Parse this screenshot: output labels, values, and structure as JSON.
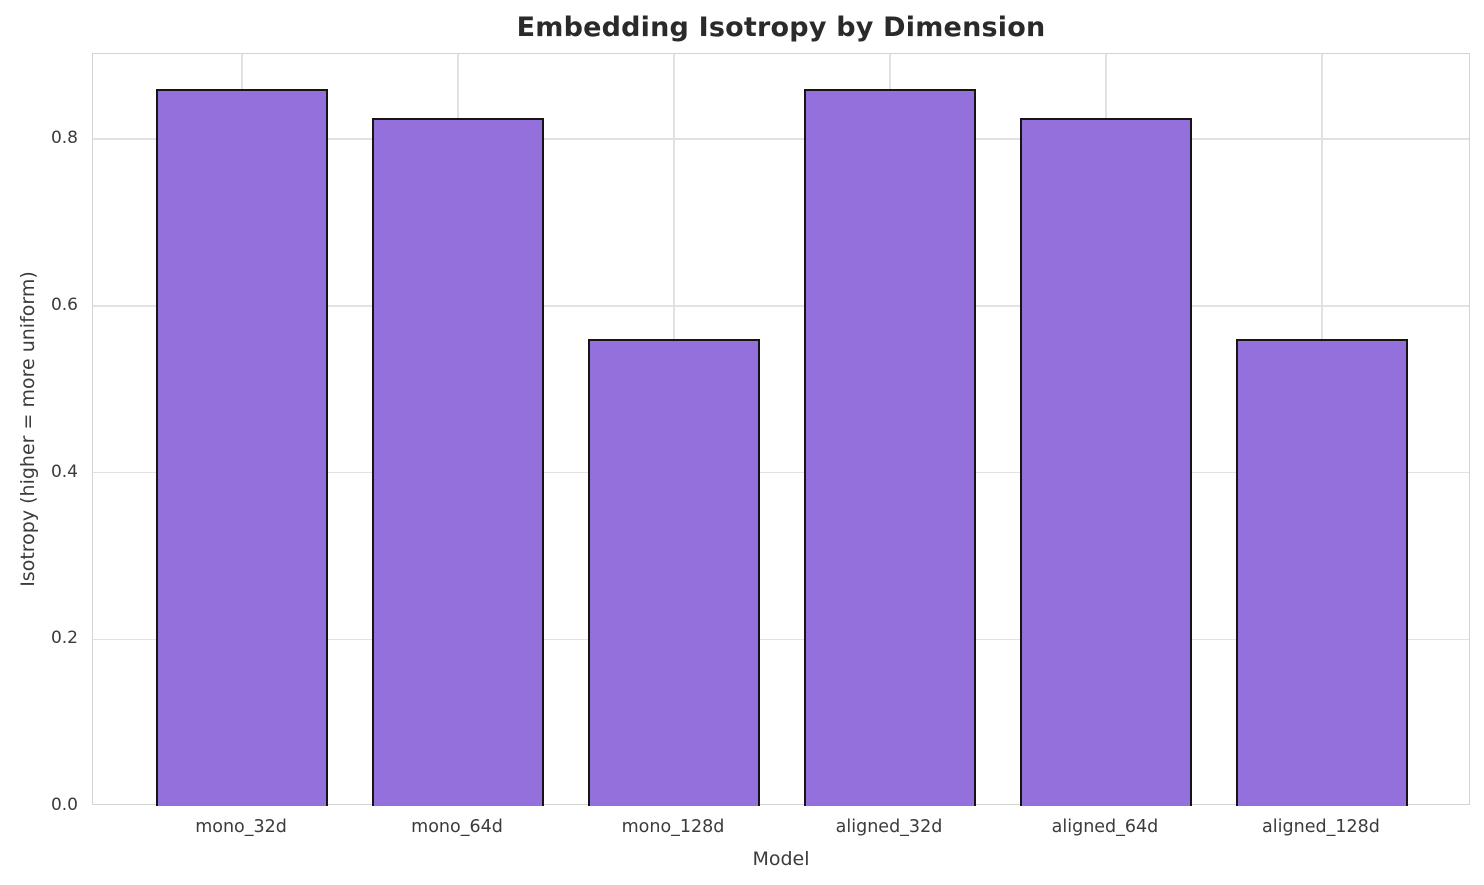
{
  "chart_data": {
    "type": "bar",
    "title": "Embedding Isotropy by Dimension",
    "xlabel": "Model",
    "ylabel": "Isotropy (higher = more uniform)",
    "categories": [
      "mono_32d",
      "mono_64d",
      "mono_128d",
      "aligned_32d",
      "aligned_64d",
      "aligned_128d"
    ],
    "values": [
      0.86,
      0.825,
      0.56,
      0.86,
      0.825,
      0.56
    ],
    "ylim": [
      0,
      0.902
    ],
    "xlim_units": [
      -0.69,
      5.69
    ],
    "bar_width_units": 0.8,
    "yticks": [
      0.0,
      0.2,
      0.4,
      0.6,
      0.8
    ],
    "ytick_labels": [
      "0.0",
      "0.2",
      "0.4",
      "0.6",
      "0.8"
    ],
    "grid": true,
    "legend_position": "none",
    "colors": {
      "bar_fill": "#9370DB",
      "bar_edge": "#151515",
      "grid": "#e2e2e2",
      "spine": "#d4d4d4",
      "text": "#3b3b3b",
      "title": "#2a2a2a",
      "background": "#ffffff"
    }
  }
}
